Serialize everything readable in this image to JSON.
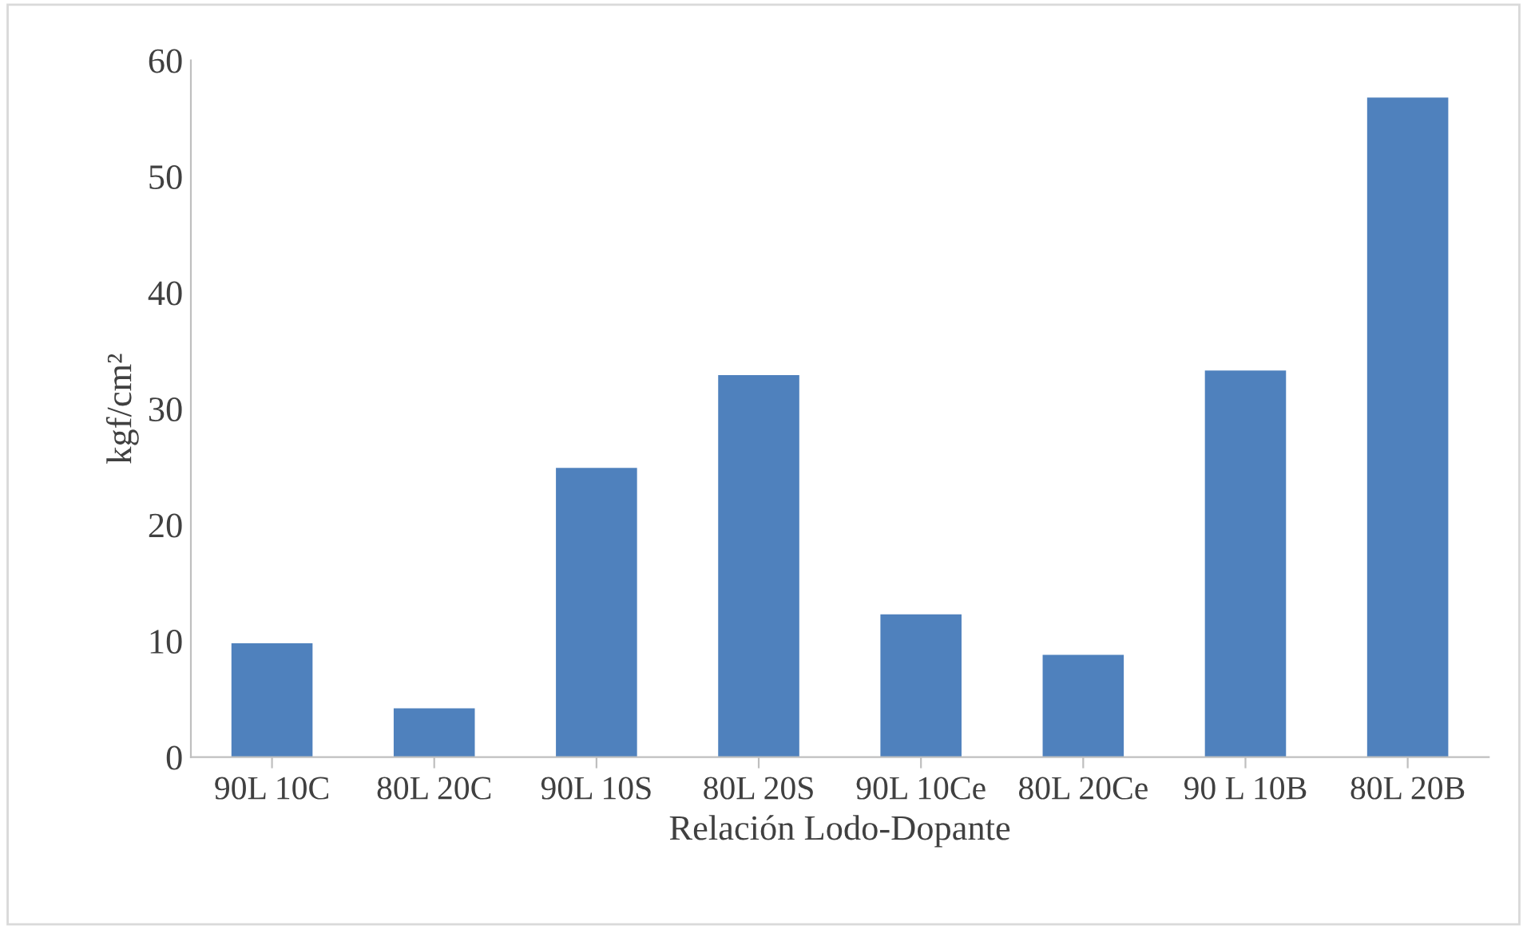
{
  "chart_data": {
    "type": "bar",
    "xlabel": "Relación Lodo-Dopante",
    "ylabel": "kgf/cm²",
    "categories": [
      "90L 10C",
      "80L 20C",
      "90L 10S",
      "80L 20S",
      "90L 10Ce",
      "80L 20Ce",
      "90 L 10B",
      "80L 20B"
    ],
    "values": [
      9.8,
      4.2,
      24.9,
      32.9,
      12.3,
      8.8,
      33.3,
      56.8
    ],
    "color": "#4f81bd",
    "ylim": [
      0,
      60
    ],
    "yticks": [
      0,
      10,
      20,
      30,
      40,
      50,
      60
    ],
    "grid": false,
    "legend": false
  }
}
